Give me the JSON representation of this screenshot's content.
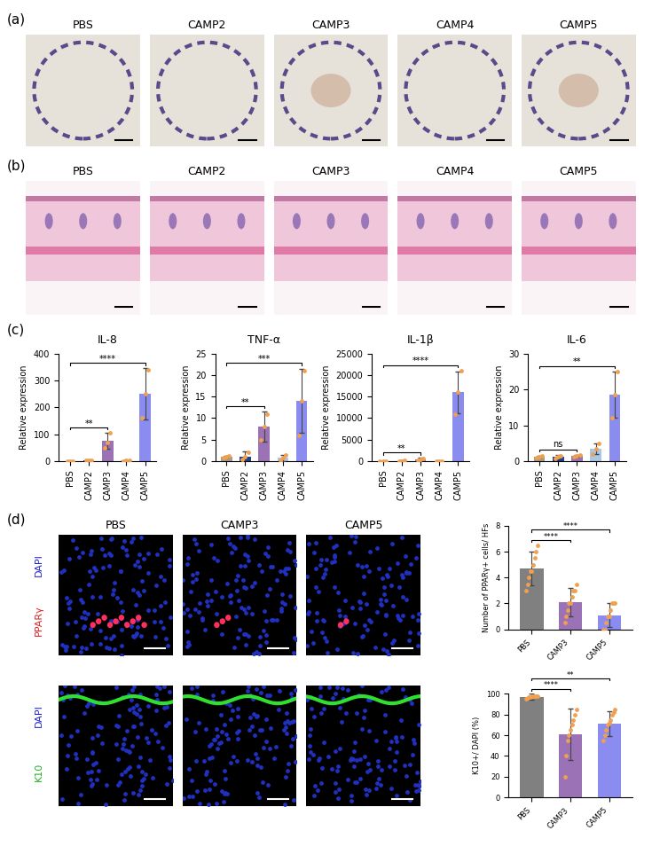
{
  "figure": {
    "panel_a": {
      "label": "(a)",
      "images": [
        "PBS",
        "CAMP2",
        "CAMP3",
        "CAMP4",
        "CAMP5"
      ]
    },
    "panel_b": {
      "label": "(b)",
      "images": [
        "PBS",
        "CAMP2",
        "CAMP3",
        "CAMP4",
        "CAMP5"
      ]
    },
    "panel_c": {
      "label": "(c)"
    },
    "panel_d": {
      "label": "(d)",
      "columns": [
        "PBS",
        "CAMP3",
        "CAMP5"
      ],
      "rows": [
        {
          "counterstain": "DAPI",
          "stain": "PPARγ"
        },
        {
          "counterstain": "DAPI",
          "stain": "K10"
        }
      ]
    }
  },
  "chart_data": [
    {
      "type": "bar",
      "title": "IL-8",
      "ylabel": "Relative expression",
      "categories": [
        "PBS",
        "CAMP2",
        "CAMP3",
        "CAMP4",
        "CAMP5"
      ],
      "values": [
        1,
        3,
        75,
        2,
        250
      ],
      "errors": [
        0.3,
        1.5,
        30,
        1,
        95
      ],
      "points": [
        [
          1,
          1,
          1
        ],
        [
          2,
          4,
          3
        ],
        [
          50,
          70,
          105
        ],
        [
          1,
          2,
          3
        ],
        [
          160,
          250,
          340
        ]
      ],
      "colors": [
        "#a89b8c",
        "#1f3f8f",
        "#9b72b5",
        "#a9c8e8",
        "#8b8cf0"
      ],
      "ylim": [
        0,
        400
      ],
      "yticks": [
        0,
        100,
        200,
        300,
        400
      ],
      "significance": [
        {
          "from": "PBS",
          "to": "CAMP3",
          "label": "**"
        },
        {
          "from": "PBS",
          "to": "CAMP5",
          "label": "****"
        }
      ]
    },
    {
      "type": "bar",
      "title": "TNF-α",
      "ylabel": "Relative expression",
      "categories": [
        "PBS",
        "CAMP2",
        "CAMP3",
        "CAMP4",
        "CAMP5"
      ],
      "values": [
        1,
        1,
        8,
        0.8,
        14
      ],
      "errors": [
        0.2,
        1.2,
        3.5,
        0.7,
        7.5
      ],
      "points": [
        [
          0.8,
          1,
          1.2
        ],
        [
          0.5,
          1,
          2
        ],
        [
          5,
          8,
          11
        ],
        [
          0.2,
          0.8,
          1.5
        ],
        [
          6,
          14,
          21
        ]
      ],
      "colors": [
        "#a89b8c",
        "#1f3f8f",
        "#9b72b5",
        "#a9c8e8",
        "#8b8cf0"
      ],
      "ylim": [
        0,
        25
      ],
      "yticks": [
        0,
        5,
        10,
        15,
        20,
        25
      ],
      "significance": [
        {
          "from": "PBS",
          "to": "CAMP3",
          "label": "**"
        },
        {
          "from": "PBS",
          "to": "CAMP5",
          "label": "***"
        }
      ]
    },
    {
      "type": "bar",
      "title": "IL-1β",
      "ylabel": "Relative expression",
      "categories": [
        "PBS",
        "CAMP2",
        "CAMP3",
        "CAMP4",
        "CAMP5"
      ],
      "values": [
        1,
        100,
        500,
        50,
        16000
      ],
      "errors": [
        0.5,
        50,
        250,
        30,
        4800
      ],
      "points": [
        [
          1,
          1,
          1
        ],
        [
          80,
          100,
          120
        ],
        [
          300,
          500,
          700
        ],
        [
          30,
          50,
          70
        ],
        [
          11000,
          16000,
          21000
        ]
      ],
      "colors": [
        "#a89b8c",
        "#1f3f8f",
        "#9b72b5",
        "#a9c8e8",
        "#8b8cf0"
      ],
      "ylim": [
        0,
        25000
      ],
      "yticks": [
        0,
        5000,
        10000,
        15000,
        20000,
        25000
      ],
      "significance": [
        {
          "from": "PBS",
          "to": "CAMP3",
          "label": "**"
        },
        {
          "from": "PBS",
          "to": "CAMP5",
          "label": "****"
        }
      ]
    },
    {
      "type": "bar",
      "title": "IL-6",
      "ylabel": "Relative expression",
      "categories": [
        "PBS",
        "CAMP2",
        "CAMP3",
        "CAMP4",
        "CAMP5"
      ],
      "values": [
        1.2,
        1.2,
        1.5,
        3.5,
        18.5
      ],
      "errors": [
        0.3,
        0.5,
        0.2,
        1.5,
        6.5
      ],
      "points": [
        [
          1,
          1.2,
          1.4
        ],
        [
          0.8,
          1.2,
          1.6
        ],
        [
          1.3,
          1.5,
          1.7
        ],
        [
          2,
          3.5,
          5
        ],
        [
          12,
          18.5,
          25
        ]
      ],
      "colors": [
        "#a89b8c",
        "#1f3f8f",
        "#9b72b5",
        "#a9c8e8",
        "#8b8cf0"
      ],
      "ylim": [
        0,
        30
      ],
      "yticks": [
        0,
        10,
        20,
        30
      ],
      "significance": [
        {
          "from": "PBS",
          "to": "CAMP3",
          "label": "ns"
        },
        {
          "from": "PBS",
          "to": "CAMP5",
          "label": "**"
        }
      ]
    },
    {
      "type": "bar",
      "ylabel": "Number of PPARγ+ cells/ HFs",
      "categories": [
        "PBS",
        "CAMP3",
        "CAMP5"
      ],
      "values": [
        4.7,
        2.1,
        1.1
      ],
      "errors": [
        1.3,
        1.1,
        0.9
      ],
      "points": [
        [
          3,
          3.5,
          4,
          4.5,
          4.5,
          5,
          5.5,
          6,
          6.5
        ],
        [
          0.5,
          1,
          1.5,
          2,
          2,
          2.5,
          3,
          3,
          3.5
        ],
        [
          0,
          0,
          0.5,
          1,
          1,
          1.5,
          2,
          2,
          2
        ]
      ],
      "colors": [
        "#808080",
        "#9b72b5",
        "#8b8cf0"
      ],
      "ylim": [
        0,
        8
      ],
      "yticks": [
        0,
        2,
        4,
        6,
        8
      ],
      "significance": [
        {
          "from": "PBS",
          "to": "CAMP3",
          "label": "****"
        },
        {
          "from": "PBS",
          "to": "CAMP5",
          "label": "****"
        }
      ]
    },
    {
      "type": "bar",
      "ylabel": "K10+/ DAPI (%)",
      "categories": [
        "PBS",
        "CAMP3",
        "CAMP5"
      ],
      "values": [
        97,
        61,
        71
      ],
      "errors": [
        3,
        25,
        12
      ],
      "points": [
        [
          95,
          96,
          97,
          97,
          98,
          98,
          98,
          98,
          98
        ],
        [
          20,
          40,
          55,
          60,
          65,
          70,
          75,
          80,
          85
        ],
        [
          55,
          60,
          65,
          70,
          72,
          75,
          80,
          82,
          85
        ]
      ],
      "colors": [
        "#808080",
        "#9b72b5",
        "#8b8cf0"
      ],
      "ylim": [
        0,
        100
      ],
      "yticks": [
        0,
        20,
        40,
        60,
        80,
        100
      ],
      "significance": [
        {
          "from": "PBS",
          "to": "CAMP3",
          "label": "****"
        },
        {
          "from": "PBS",
          "to": "CAMP5",
          "label": "**"
        }
      ]
    }
  ]
}
